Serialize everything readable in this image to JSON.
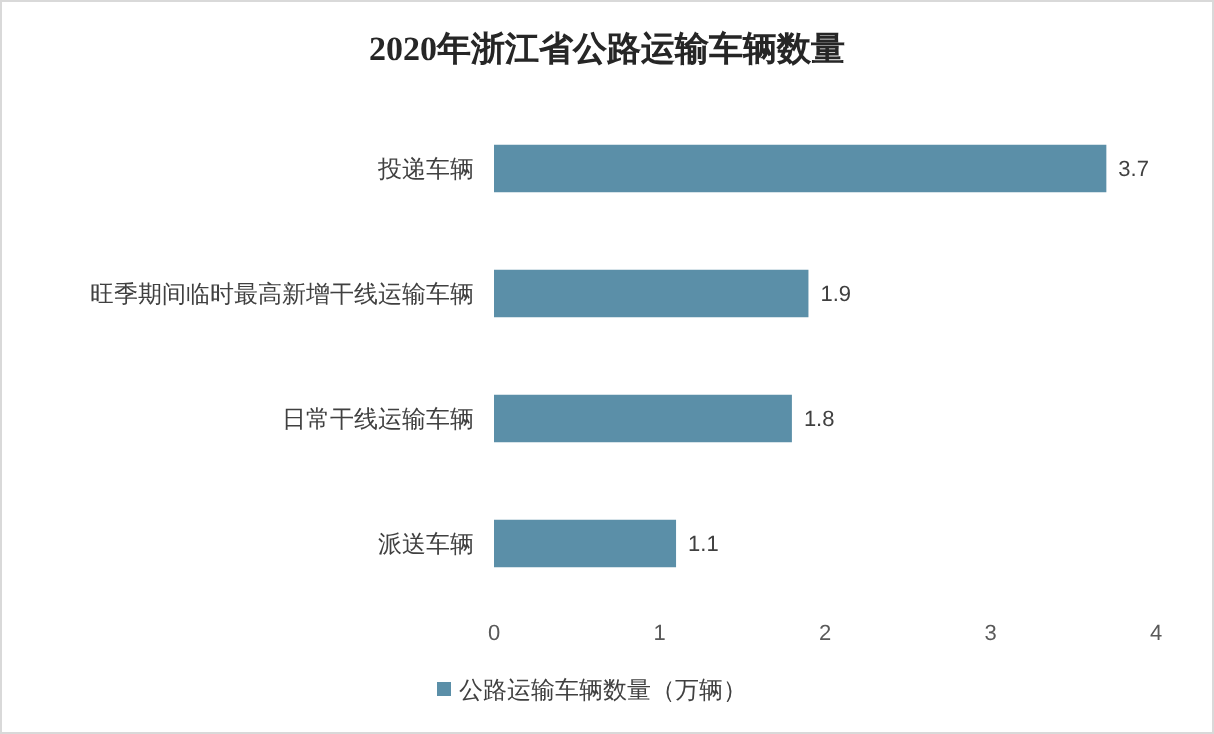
{
  "chart_data": {
    "type": "bar",
    "orientation": "horizontal",
    "title": "2020年浙江省公路运输车辆数量",
    "categories": [
      "投递车辆",
      "旺季期间临时最高新增干线运输车辆",
      "日常干线运输车辆",
      "派送车辆"
    ],
    "series": [
      {
        "name": "公路运输车辆数量（万辆）",
        "color": "#5b8fa8",
        "values": [
          3.7,
          1.9,
          1.8,
          1.1
        ]
      }
    ],
    "xlim": [
      0,
      4
    ],
    "xticks": [
      0,
      1,
      2,
      3,
      4
    ],
    "data_labels": true,
    "grid": false,
    "legend": "bottom"
  }
}
